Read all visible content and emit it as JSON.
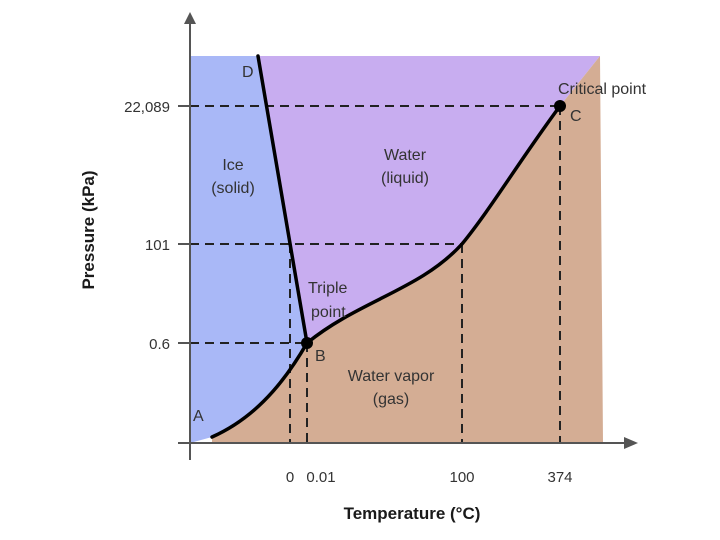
{
  "diagram": {
    "colors": {
      "solid": "#a9b8f7",
      "liquid": "#c8adf0",
      "gas": "#d4ad94",
      "curve": "#000000",
      "axis": "#555555"
    },
    "axes": {
      "x_title": "Temperature (°C)",
      "y_title": "Pressure (kPa)",
      "x_ticks": [
        "0",
        "0.01",
        "100",
        "374"
      ],
      "y_ticks": [
        "22,089",
        "101",
        "0.6"
      ]
    },
    "regions": {
      "solid": [
        "Ice",
        "(solid)"
      ],
      "liquid": [
        "Water",
        "(liquid)"
      ],
      "gas": [
        "Water vapor",
        "(gas)"
      ]
    },
    "points": {
      "A": "A",
      "B": "B",
      "C": "C",
      "D": "D"
    },
    "annotations": {
      "triple_point": [
        "Triple",
        "point"
      ],
      "critical_point": "Critical point"
    }
  }
}
